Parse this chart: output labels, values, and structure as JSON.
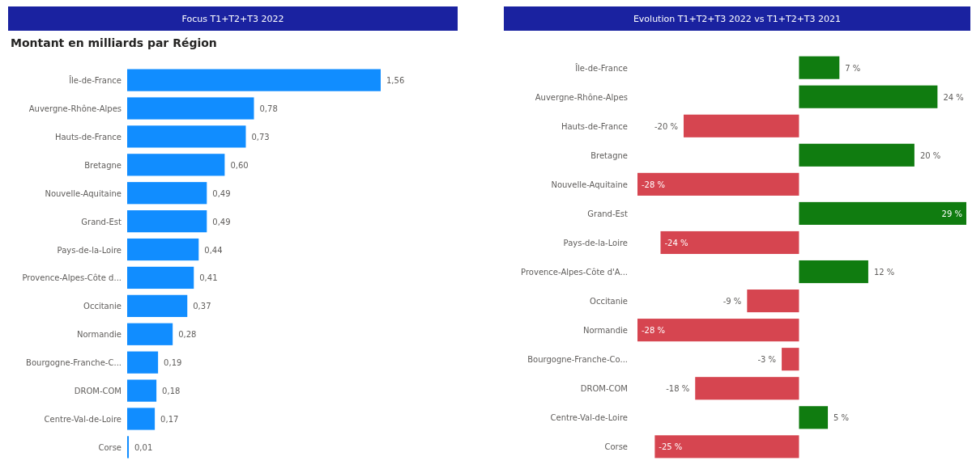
{
  "chart_data": [
    {
      "type": "bar",
      "orientation": "horizontal",
      "title": "Focus T1+T2+T3 2022",
      "subtitle": "Montant en milliards par Région",
      "categories": [
        "Île-de-France",
        "Auvergne-Rhône-Alpes",
        "Hauts-de-France",
        "Bretagne",
        "Nouvelle-Aquitaine",
        "Grand-Est",
        "Pays-de-la-Loire",
        "Provence-Alpes-Côte d...",
        "Occitanie",
        "Normandie",
        "Bourgogne-Franche-C...",
        "DROM-COM",
        "Centre-Val-de-Loire",
        "Corse"
      ],
      "values": [
        1.56,
        0.78,
        0.73,
        0.6,
        0.49,
        0.49,
        0.44,
        0.41,
        0.37,
        0.28,
        0.19,
        0.18,
        0.17,
        0.01
      ],
      "value_labels": [
        "1,56",
        "0,78",
        "0,73",
        "0,60",
        "0,49",
        "0,49",
        "0,44",
        "0,41",
        "0,37",
        "0,28",
        "0,19",
        "0,18",
        "0,17",
        "0,01"
      ],
      "color": "#118dff"
    },
    {
      "type": "bar",
      "orientation": "horizontal",
      "title": "Evolution T1+T2+T3 2022 vs T1+T2+T3 2021",
      "categories": [
        "Île-de-France",
        "Auvergne-Rhône-Alpes",
        "Hauts-de-France",
        "Bretagne",
        "Nouvelle-Aquitaine",
        "Grand-Est",
        "Pays-de-la-Loire",
        "Provence-Alpes-Côte d'A...",
        "Occitanie",
        "Normandie",
        "Bourgogne-Franche-Co...",
        "DROM-COM",
        "Centre-Val-de-Loire",
        "Corse"
      ],
      "values": [
        7,
        24,
        -20,
        20,
        -28,
        29,
        -24,
        12,
        -9,
        -28,
        -3,
        -18,
        5,
        -25
      ],
      "value_labels": [
        "7 %",
        "24 %",
        "-20 %",
        "20 %",
        "-28 %",
        "29 %",
        "-24 %",
        "12 %",
        "-9 %",
        "-28 %",
        "-3 %",
        "-18 %",
        "5 %",
        "-25 %"
      ],
      "colors": [
        "#107c10",
        "#107c10",
        "#d64550",
        "#107c10",
        "#d64550",
        "#107c10",
        "#d64550",
        "#107c10",
        "#d64550",
        "#d64550",
        "#d64550",
        "#d64550",
        "#107c10",
        "#d64550"
      ]
    }
  ]
}
